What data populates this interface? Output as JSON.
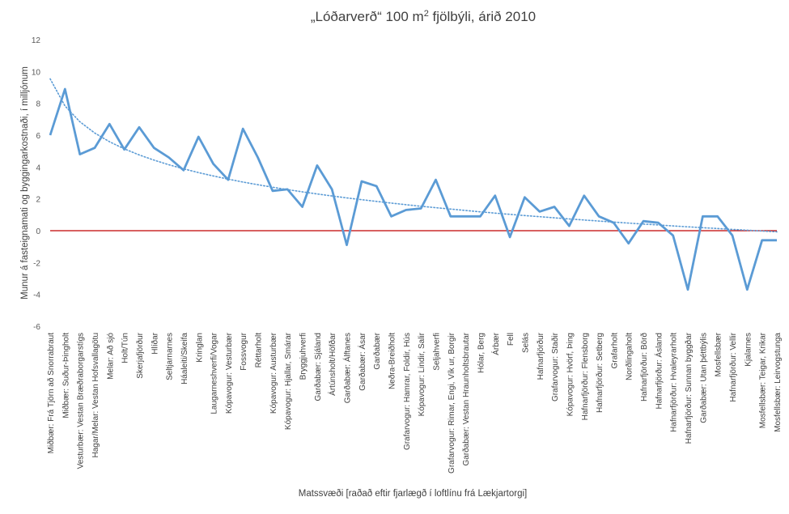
{
  "chart_data": {
    "type": "line",
    "title_main": "„Lóðarverð“ 100 m",
    "title_sup": "2",
    "title_rest": " fjölbýli, árið 2010",
    "xlabel": "Matssvæði [raðað eftir fjarlægð í loftlínu frá Lækjartorgi]",
    "ylabel": "Munur á fasteignamati og byggingarkostnaði, í milljónum",
    "ylim": [
      -6,
      12
    ],
    "yticks": [
      -6,
      -4,
      -2,
      0,
      2,
      4,
      6,
      8,
      10,
      12
    ],
    "grid": false,
    "colors": {
      "series": "#5b9bd5",
      "trend": "#5b9bd5",
      "zero_line": "#c00000",
      "axis": "#bfbfbf"
    },
    "categories": [
      "Miðbær: Frá Tjörn að Snorrabraut",
      "Miðbær: Suður-Þingholt",
      "Vesturbær: Vestan Bræðraborgarstígs",
      "Hagar/Melar: Vestan Hofsvallagötu",
      "Melar: Að sjó",
      "Holt/Tún",
      "Skerjafjörður",
      "Hlíðar",
      "Seltjarnarnes",
      "Háaleiti/Skeifa",
      "Kringlan",
      "Laugarneshverfi/Vogar",
      "Kópavogur: Vesturbær",
      "Fossvogur",
      "Réttarholt",
      "Kópavogur: Austurbær",
      "Kópavogur: Hjallar, Smárar",
      "Bryggjuhverfi",
      "Garðabær: Sjáland",
      "Ártúnsholt/Höfðar",
      "Garðabær: Álftanes",
      "Garðabær: Ásar",
      "Garðabær",
      "Neðra-Breiðholt",
      "Grafarvogur: Hamrar, Foldir, Hús",
      "Kópavogur: Lindir, Salir",
      "Seljahverfi",
      "Grafarvogur: Rimar, Engi, Vík ur, Borgir",
      "Garðabær: Vestan Hraunholtsbrautar",
      "Hólar, Berg",
      "Árbær",
      "Fell",
      "Selás",
      "Hafnarfjörður",
      "Grafarvogur: Staðir",
      "Kópavogur: Hvörf, Þing",
      "Hafnarfjörður: Flensborg",
      "Hafnarfjörður: Setberg",
      "Grafarholt",
      "Norðlingaholt",
      "Hafnarfjörður: Börð",
      "Hafnarfjörður: Ásland",
      "Hafnarfjörður: Hvaleyrarholt",
      "Hafnarfjörður: Sunnan byggðar",
      "Garðabær: Utan þéttbýlis",
      "Mosfellsbær",
      "Hafnarfjörður: Vellir",
      "Kjalarnes",
      "Mosfellsbær: Teigar, Krikar",
      "Mosfellsbær: Leirvogstunga"
    ],
    "series": [
      {
        "values": [
          6.0,
          8.9,
          4.8,
          5.2,
          6.7,
          5.1,
          6.5,
          5.2,
          4.6,
          3.8,
          5.9,
          4.2,
          3.2,
          6.4,
          4.6,
          2.5,
          2.6,
          1.5,
          4.1,
          2.6,
          -0.9,
          3.1,
          2.8,
          0.9,
          1.3,
          1.4,
          3.2,
          0.9,
          0.9,
          0.9,
          2.2,
          -0.4,
          2.1,
          1.2,
          1.5,
          0.3,
          2.2,
          0.9,
          0.5,
          -0.8,
          0.6,
          0.5,
          -0.3,
          -3.7,
          0.9,
          0.9,
          -0.3,
          -3.7,
          -0.6,
          -0.6
        ]
      }
    ],
    "trendline": {
      "type": "logarithmic",
      "style": "dotted"
    }
  }
}
